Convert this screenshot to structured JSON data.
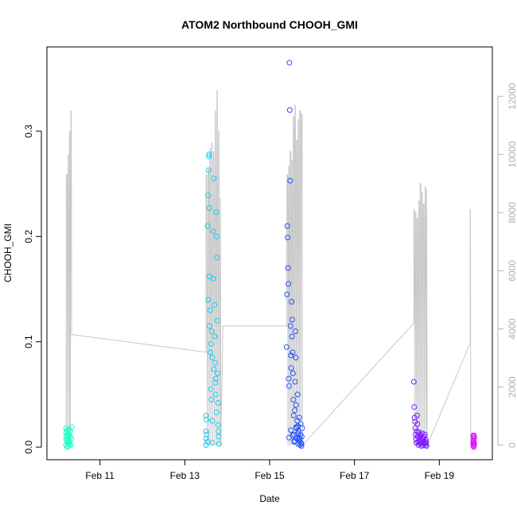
{
  "chart_data": {
    "type": "scatter",
    "title": "ATOM2 Northbound CHOOH_GMI",
    "xlabel": "Date",
    "ylabel": "CHOOH_GMI",
    "x_ticks": [
      "Feb 11",
      "Feb 13",
      "Feb 15",
      "Feb 17",
      "Feb 19"
    ],
    "y_ticks": [
      "0.0",
      "0.1",
      "0.2",
      "0.3"
    ],
    "y2_ticks": [
      "0",
      "2000",
      "4000",
      "6000",
      "8000",
      "10000",
      "12000"
    ],
    "xlim": [
      "Feb 09 18:00",
      "Feb 20 06:00"
    ],
    "ylim": [
      -0.012,
      0.38
    ],
    "y2lim": [
      -500,
      13700
    ],
    "grid": false,
    "colors": {
      "altitude_line": "#c8c8c8",
      "f10": "#1dffc8",
      "f13": "#1ecbf0",
      "f15": "#2452ff",
      "f18": "#7d1aff",
      "f19": "#e016ff"
    },
    "series": [
      {
        "color": "#1dffc8",
        "x": [
          "Feb 10 04:48",
          "Feb 10 04:48",
          "Feb 10 04:48",
          "Feb 10 04:48",
          "Feb 10 05:00",
          "Feb 10 05:12",
          "Feb 10 05:24",
          "Feb 10 05:24",
          "Feb 10 05:36",
          "Feb 10 05:48",
          "Feb 10 06:00",
          "Feb 10 06:00",
          "Feb 10 06:12",
          "Feb 10 06:24",
          "Feb 10 06:36",
          "Feb 10 06:36",
          "Feb 10 06:48",
          "Feb 10 07:00",
          "Feb 10 07:12",
          "Feb 10 07:24",
          "Feb 10 07:48",
          "Feb 10 08:00"
        ],
        "y": [
          0.018,
          0.014,
          0.008,
          0.002,
          0.011,
          0.006,
          0.016,
          0.0,
          0.009,
          0.004,
          0.013,
          0.001,
          0.007,
          0.012,
          0.003,
          0.017,
          0.005,
          0.01,
          0.015,
          0.002,
          0.008,
          0.019
        ]
      },
      {
        "color": "#1ecbf0",
        "x": [
          "Feb 13 12:00",
          "Feb 13 12:00",
          "Feb 13 12:00",
          "Feb 13 12:00",
          "Feb 13 12:12",
          "Feb 13 12:24",
          "Feb 13 12:48",
          "Feb 13 13:00",
          "Feb 13 13:12",
          "Feb 13 13:24",
          "Feb 13 13:36",
          "Feb 13 13:48",
          "Feb 13 14:00",
          "Feb 13 14:00",
          "Feb 13 14:24",
          "Feb 13 14:24",
          "Feb 13 14:48",
          "Feb 13 15:00",
          "Feb 13 15:12",
          "Feb 13 15:36",
          "Feb 13 15:36",
          "Feb 13 16:00",
          "Feb 13 16:12",
          "Feb 13 16:24",
          "Feb 13 16:48",
          "Feb 13 17:00",
          "Feb 13 17:12",
          "Feb 13 17:24",
          "Feb 13 17:36",
          "Feb 13 17:48",
          "Feb 13 18:00",
          "Feb 13 18:12",
          "Feb 13 18:24",
          "Feb 13 18:36",
          "Feb 13 18:48",
          "Feb 13 19:00",
          "Feb 13 19:12",
          "Feb 13 19:24",
          "Feb 13 13:12",
          "Feb 13 14:00",
          "Feb 13 14:48",
          "Feb 13 15:36",
          "Feb 13 16:24",
          "Feb 13 17:12",
          "Feb 13 18:00",
          "Feb 13 18:48"
        ],
        "y": [
          0.03,
          0.015,
          0.008,
          0.002,
          0.026,
          0.012,
          0.005,
          0.21,
          0.239,
          0.263,
          0.276,
          0.278,
          0.227,
          0.162,
          0.13,
          0.09,
          0.055,
          0.045,
          0.11,
          0.025,
          0.004,
          0.205,
          0.16,
          0.255,
          0.135,
          0.105,
          0.08,
          0.05,
          0.065,
          0.223,
          0.2,
          0.18,
          0.12,
          0.07,
          0.042,
          0.015,
          0.01,
          0.003,
          0.14,
          0.115,
          0.098,
          0.085,
          0.074,
          0.061,
          0.033,
          0.021
        ]
      },
      {
        "color": "#2452ff",
        "x": [
          "Feb 15 09:36",
          "Feb 15 09:48",
          "Feb 15 10:00",
          "Feb 15 10:12",
          "Feb 15 10:24",
          "Feb 15 10:36",
          "Feb 15 10:48",
          "Feb 15 11:00",
          "Feb 15 11:12",
          "Feb 15 11:24",
          "Feb 15 11:36",
          "Feb 15 11:48",
          "Feb 15 12:00",
          "Feb 15 12:12",
          "Feb 15 12:24",
          "Feb 15 12:36",
          "Feb 15 12:48",
          "Feb 15 13:00",
          "Feb 15 13:12",
          "Feb 15 13:24",
          "Feb 15 13:36",
          "Feb 15 13:48",
          "Feb 15 14:00",
          "Feb 15 14:12",
          "Feb 15 14:24",
          "Feb 15 14:36",
          "Feb 15 14:48",
          "Feb 15 15:00",
          "Feb 15 15:12",
          "Feb 15 15:24",
          "Feb 15 15:36",
          "Feb 15 15:48",
          "Feb 15 16:00",
          "Feb 15 16:12",
          "Feb 15 16:24",
          "Feb 15 16:36",
          "Feb 15 16:48",
          "Feb 15 17:00",
          "Feb 15 17:12",
          "Feb 15 17:24",
          "Feb 15 17:36",
          "Feb 15 17:48",
          "Feb 15 18:00",
          "Feb 15 18:12",
          "Feb 15 18:24",
          "Feb 15 11:00",
          "Feb 15 12:00",
          "Feb 15 13:00",
          "Feb 15 14:00",
          "Feb 15 15:00",
          "Feb 15 16:00",
          "Feb 15 17:00",
          "Feb 15 18:00"
        ],
        "y": [
          0.095,
          0.145,
          0.21,
          0.199,
          0.17,
          0.155,
          0.065,
          0.058,
          0.365,
          0.32,
          0.253,
          0.115,
          0.087,
          0.075,
          0.138,
          0.105,
          0.121,
          0.09,
          0.07,
          0.045,
          0.03,
          0.012,
          0.005,
          0.035,
          0.062,
          0.11,
          0.085,
          0.04,
          0.018,
          0.008,
          0.025,
          0.05,
          0.02,
          0.003,
          0.015,
          0.009,
          0.028,
          0.006,
          0.002,
          0.012,
          0.022,
          0.004,
          0.001,
          0.01,
          0.018,
          0.009,
          0.016,
          0.011,
          0.006,
          0.019,
          0.013,
          0.008,
          0.003
        ]
      },
      {
        "color": "#7d1aff",
        "x": [
          "Feb 18 09:36",
          "Feb 18 09:48",
          "Feb 18 10:00",
          "Feb 18 10:12",
          "Feb 18 10:24",
          "Feb 18 10:36",
          "Feb 18 10:48",
          "Feb 18 11:00",
          "Feb 18 11:12",
          "Feb 18 11:24",
          "Feb 18 11:36",
          "Feb 18 11:48",
          "Feb 18 12:00",
          "Feb 18 12:12",
          "Feb 18 12:24",
          "Feb 18 12:36",
          "Feb 18 12:48",
          "Feb 18 13:00",
          "Feb 18 13:12",
          "Feb 18 13:24",
          "Feb 18 13:36",
          "Feb 18 13:48",
          "Feb 18 14:00",
          "Feb 18 14:12",
          "Feb 18 14:24",
          "Feb 18 14:36",
          "Feb 18 14:48",
          "Feb 18 15:00",
          "Feb 18 15:12",
          "Feb 18 15:24",
          "Feb 18 15:36",
          "Feb 18 15:48",
          "Feb 18 16:00",
          "Feb 18 16:12",
          "Feb 18 16:24",
          "Feb 18 16:36",
          "Feb 18 16:48"
        ],
        "y": [
          0.062,
          0.038,
          0.028,
          0.024,
          0.018,
          0.012,
          0.008,
          0.004,
          0.015,
          0.03,
          0.022,
          0.01,
          0.005,
          0.002,
          0.014,
          0.009,
          0.006,
          0.012,
          0.003,
          0.007,
          0.011,
          0.004,
          0.001,
          0.009,
          0.013,
          0.006,
          0.002,
          0.008,
          0.004,
          0.01,
          0.003,
          0.012,
          0.005,
          0.002,
          0.007,
          0.004,
          0.001
        ]
      },
      {
        "color": "#e016ff",
        "x": [
          "Feb 19 19:12",
          "Feb 19 19:12",
          "Feb 19 19:12",
          "Feb 19 19:12",
          "Feb 19 19:12",
          "Feb 19 19:24",
          "Feb 19 19:24",
          "Feb 19 19:24",
          "Feb 19 19:36",
          "Feb 19 19:36",
          "Feb 19 19:36",
          "Feb 19 19:48",
          "Feb 19 19:48"
        ],
        "y": [
          0.011,
          0.008,
          0.005,
          0.003,
          0.001,
          0.01,
          0.006,
          0.002,
          0.011,
          0.004,
          0.0,
          0.009,
          0.003
        ]
      }
    ],
    "altitude_line": {
      "axis": "right",
      "x": [
        "Feb 10 04:48",
        "Feb 10 05:00",
        "Feb 10 05:24",
        "Feb 10 05:36",
        "Feb 10 06:00",
        "Feb 10 06:12",
        "Feb 10 06:36",
        "Feb 10 06:48",
        "Feb 10 07:00",
        "Feb 10 07:12",
        "Feb 10 07:36",
        "Feb 10 07:48",
        "Feb 10 08:00",
        "Feb 10 08:12",
        "Feb 10 08:12",
        "Feb 10 08:24",
        "Feb 13 12:00",
        "Feb 13 12:00",
        "Feb 13 12:24",
        "Feb 13 12:48",
        "Feb 13 13:12",
        "Feb 13 13:36",
        "Feb 13 13:48",
        "Feb 13 14:12",
        "Feb 13 14:24",
        "Feb 13 14:48",
        "Feb 13 15:12",
        "Feb 13 15:24",
        "Feb 13 15:48",
        "Feb 13 16:12",
        "Feb 13 16:24",
        "Feb 13 16:48",
        "Feb 13 17:12",
        "Feb 13 17:24",
        "Feb 13 17:48",
        "Feb 13 18:12",
        "Feb 13 18:24",
        "Feb 13 18:48",
        "Feb 13 19:12",
        "Feb 13 19:24",
        "Feb 13 19:48",
        "Feb 13 20:12",
        "Feb 13 20:24",
        "Feb 13 21:36",
        "Feb 15 09:36",
        "Feb 15 09:48",
        "Feb 15 10:12",
        "Feb 15 10:24",
        "Feb 15 10:48",
        "Feb 15 11:00",
        "Feb 15 11:24",
        "Feb 15 11:36",
        "Feb 15 12:00",
        "Feb 15 12:12",
        "Feb 15 12:36",
        "Feb 15 12:48",
        "Feb 15 13:12",
        "Feb 15 13:24",
        "Feb 15 13:48",
        "Feb 15 14:00",
        "Feb 15 14:24",
        "Feb 15 14:36",
        "Feb 15 15:00",
        "Feb 15 15:12",
        "Feb 15 15:36",
        "Feb 15 15:48",
        "Feb 15 16:12",
        "Feb 15 16:24",
        "Feb 15 16:48",
        "Feb 15 17:00",
        "Feb 15 17:24",
        "Feb 15 17:36",
        "Feb 15 18:00",
        "Feb 15 18:24",
        "Feb 15 18:36",
        "Feb 18 09:36",
        "Feb 18 09:36",
        "Feb 18 10:00",
        "Feb 18 10:12",
        "Feb 18 10:36",
        "Feb 18 10:48",
        "Feb 18 11:12",
        "Feb 18 11:24",
        "Feb 18 11:48",
        "Feb 18 12:00",
        "Feb 18 12:24",
        "Feb 18 12:36",
        "Feb 18 13:00",
        "Feb 18 13:12",
        "Feb 18 13:36",
        "Feb 18 13:48",
        "Feb 18 14:12",
        "Feb 18 14:24",
        "Feb 18 14:48",
        "Feb 18 15:00",
        "Feb 18 15:24",
        "Feb 18 15:36",
        "Feb 18 16:00",
        "Feb 18 16:12",
        "Feb 18 16:36",
        "Feb 18 16:48",
        "Feb 18 17:12",
        "Feb 19 17:24",
        "Feb 19 17:24",
        "Feb 19 17:36",
        "Feb 19 17:48"
      ],
      "y": [
        0,
        9300,
        9300,
        0,
        10000,
        10000,
        0,
        10800,
        10800,
        0,
        11500,
        11500,
        3800,
        3800,
        3800,
        3800,
        3200,
        9300,
        9300,
        0,
        9500,
        9500,
        0,
        10200,
        10200,
        0,
        10400,
        10400,
        0,
        10100,
        10100,
        0,
        11500,
        11500,
        0,
        12200,
        12200,
        0,
        10800,
        10800,
        0,
        8500,
        0,
        4100,
        4100,
        9300,
        9300,
        0,
        9600,
        9600,
        0,
        10100,
        10100,
        0,
        9800,
        9800,
        0,
        11300,
        11300,
        0,
        11700,
        11700,
        0,
        10500,
        10500,
        0,
        11200,
        11200,
        0,
        11500,
        11500,
        0,
        11400,
        11400,
        0,
        4200,
        8100,
        8100,
        0,
        8000,
        8000,
        0,
        7800,
        7800,
        0,
        8400,
        8400,
        0,
        9000,
        9000,
        0,
        8700,
        8700,
        0,
        8300,
        8300,
        0,
        8900,
        8900,
        0,
        8800,
        0,
        3500,
        8100,
        8100,
        0
      ]
    }
  }
}
